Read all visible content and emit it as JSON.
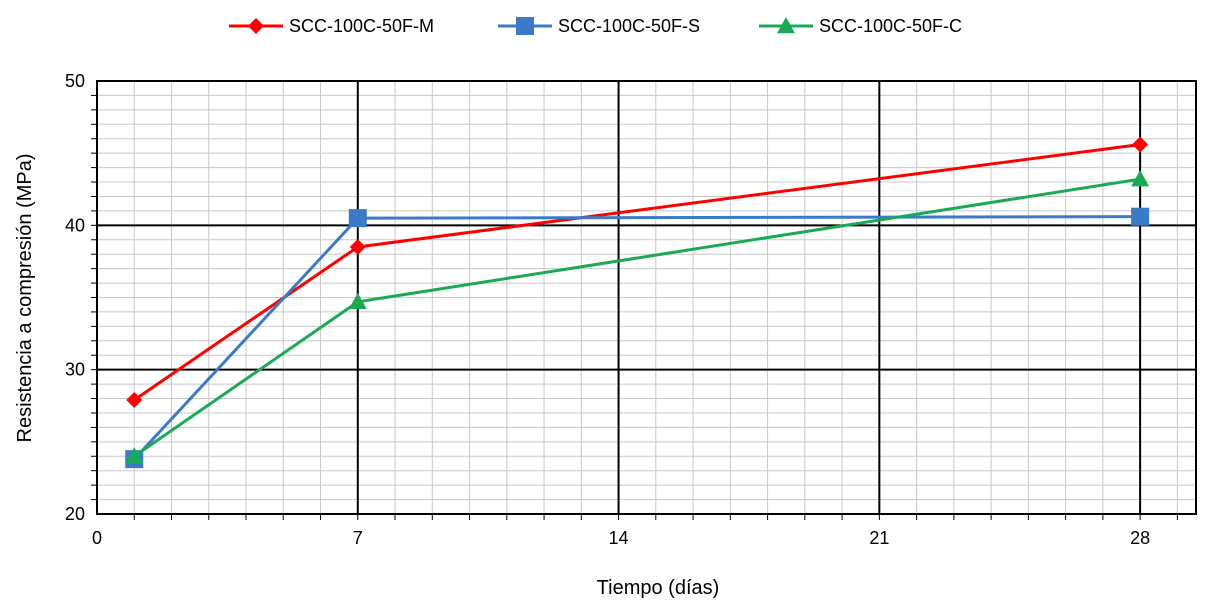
{
  "chart_data": {
    "type": "line",
    "title": "",
    "xlabel": "Tiempo (días)",
    "ylabel": "Resistencia a compresión (MPa)",
    "xlim": [
      0,
      29.5
    ],
    "ylim": [
      20,
      50
    ],
    "x_ticks": [
      0,
      7,
      14,
      21,
      28
    ],
    "y_ticks": [
      20,
      30,
      40,
      50
    ],
    "x_minor_step": 1,
    "y_minor_step": 1,
    "grid": true,
    "legend_position": "top",
    "series": [
      {
        "name": "SCC-100C-50F-M",
        "color": "#ff0000",
        "marker": "diamond",
        "x": [
          1,
          7,
          28
        ],
        "y": [
          27.9,
          38.5,
          45.6
        ]
      },
      {
        "name": "SCC-100C-50F-S",
        "color": "#3a7ac8",
        "marker": "square",
        "x": [
          1,
          7,
          28
        ],
        "y": [
          23.8,
          40.5,
          40.6
        ]
      },
      {
        "name": "SCC-100C-50F-C",
        "color": "#1aaa55",
        "marker": "triangle",
        "x": [
          1,
          7,
          28
        ],
        "y": [
          24.0,
          34.7,
          43.2
        ]
      }
    ]
  }
}
